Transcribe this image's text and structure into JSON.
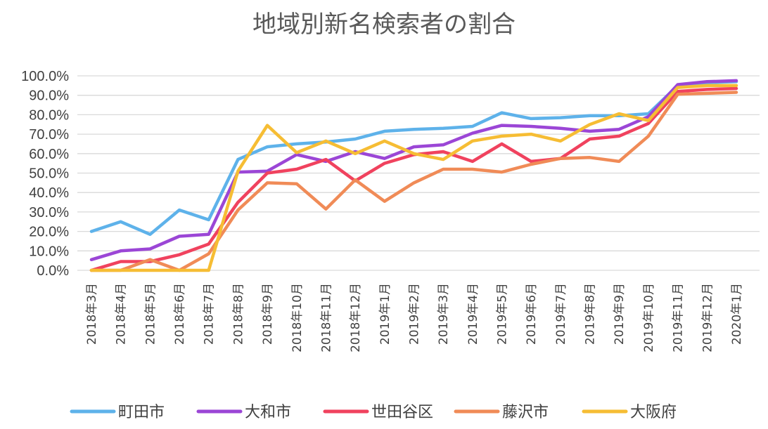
{
  "chart_data": {
    "type": "line",
    "title": "地域別新名検索者の割合",
    "xlabel": "",
    "ylabel": "",
    "ylim": [
      0,
      100
    ],
    "y_ticks": [
      "0.0%",
      "10.0%",
      "20.0%",
      "30.0%",
      "40.0%",
      "50.0%",
      "60.0%",
      "70.0%",
      "80.0%",
      "90.0%",
      "100.0%"
    ],
    "grid": true,
    "legend_position": "bottom",
    "categories": [
      "2018年3月",
      "2018年4月",
      "2018年5月",
      "2018年6月",
      "2018年7月",
      "2018年8月",
      "2018年9月",
      "2018年10月",
      "2018年11月",
      "2018年12月",
      "2019年1月",
      "2019年2月",
      "2019年3月",
      "2019年4月",
      "2019年5月",
      "2019年6月",
      "2019年7月",
      "2019年8月",
      "2019年9月",
      "2019年10月",
      "2019年11月",
      "2019年12月",
      "2020年1月"
    ],
    "series": [
      {
        "name": "町田市",
        "color": "#5eb2ea",
        "values": [
          20,
          25,
          18.5,
          31,
          26,
          57,
          63.5,
          65,
          66,
          67.5,
          71.5,
          72.5,
          73,
          74,
          81,
          78,
          78.5,
          79.5,
          79.5,
          80.5,
          95,
          96.5,
          97
        ]
      },
      {
        "name": "大和市",
        "color": "#9b46d6",
        "values": [
          5.5,
          10,
          11,
          17.5,
          18.5,
          50.5,
          51,
          59.5,
          56,
          61,
          57.5,
          63.5,
          64.5,
          70.5,
          74.5,
          74,
          73,
          71.5,
          72.5,
          79,
          95.5,
          97,
          97.5
        ]
      },
      {
        "name": "世田谷区",
        "color": "#f0425e",
        "values": [
          0,
          4.5,
          4.5,
          8,
          13.5,
          35,
          50,
          52,
          57,
          46,
          55,
          59.5,
          61,
          56,
          65,
          56,
          57.5,
          67.5,
          69,
          75.5,
          92,
          93,
          93.5
        ]
      },
      {
        "name": "藤沢市",
        "color": "#f08b57",
        "values": [
          0,
          0,
          5.5,
          0,
          8.5,
          31,
          45,
          44.5,
          31.5,
          46.5,
          35.5,
          45,
          52,
          52,
          50.5,
          54.5,
          57.5,
          58,
          56,
          69,
          90.5,
          91,
          91.5
        ]
      },
      {
        "name": "大阪府",
        "color": "#f6bd34",
        "values": [
          0,
          0,
          0,
          0,
          0,
          51,
          74.5,
          60.5,
          66.5,
          60,
          66.5,
          60,
          57,
          66.5,
          69,
          70,
          66.5,
          75,
          80.5,
          77,
          94,
          95,
          95
        ]
      }
    ]
  }
}
